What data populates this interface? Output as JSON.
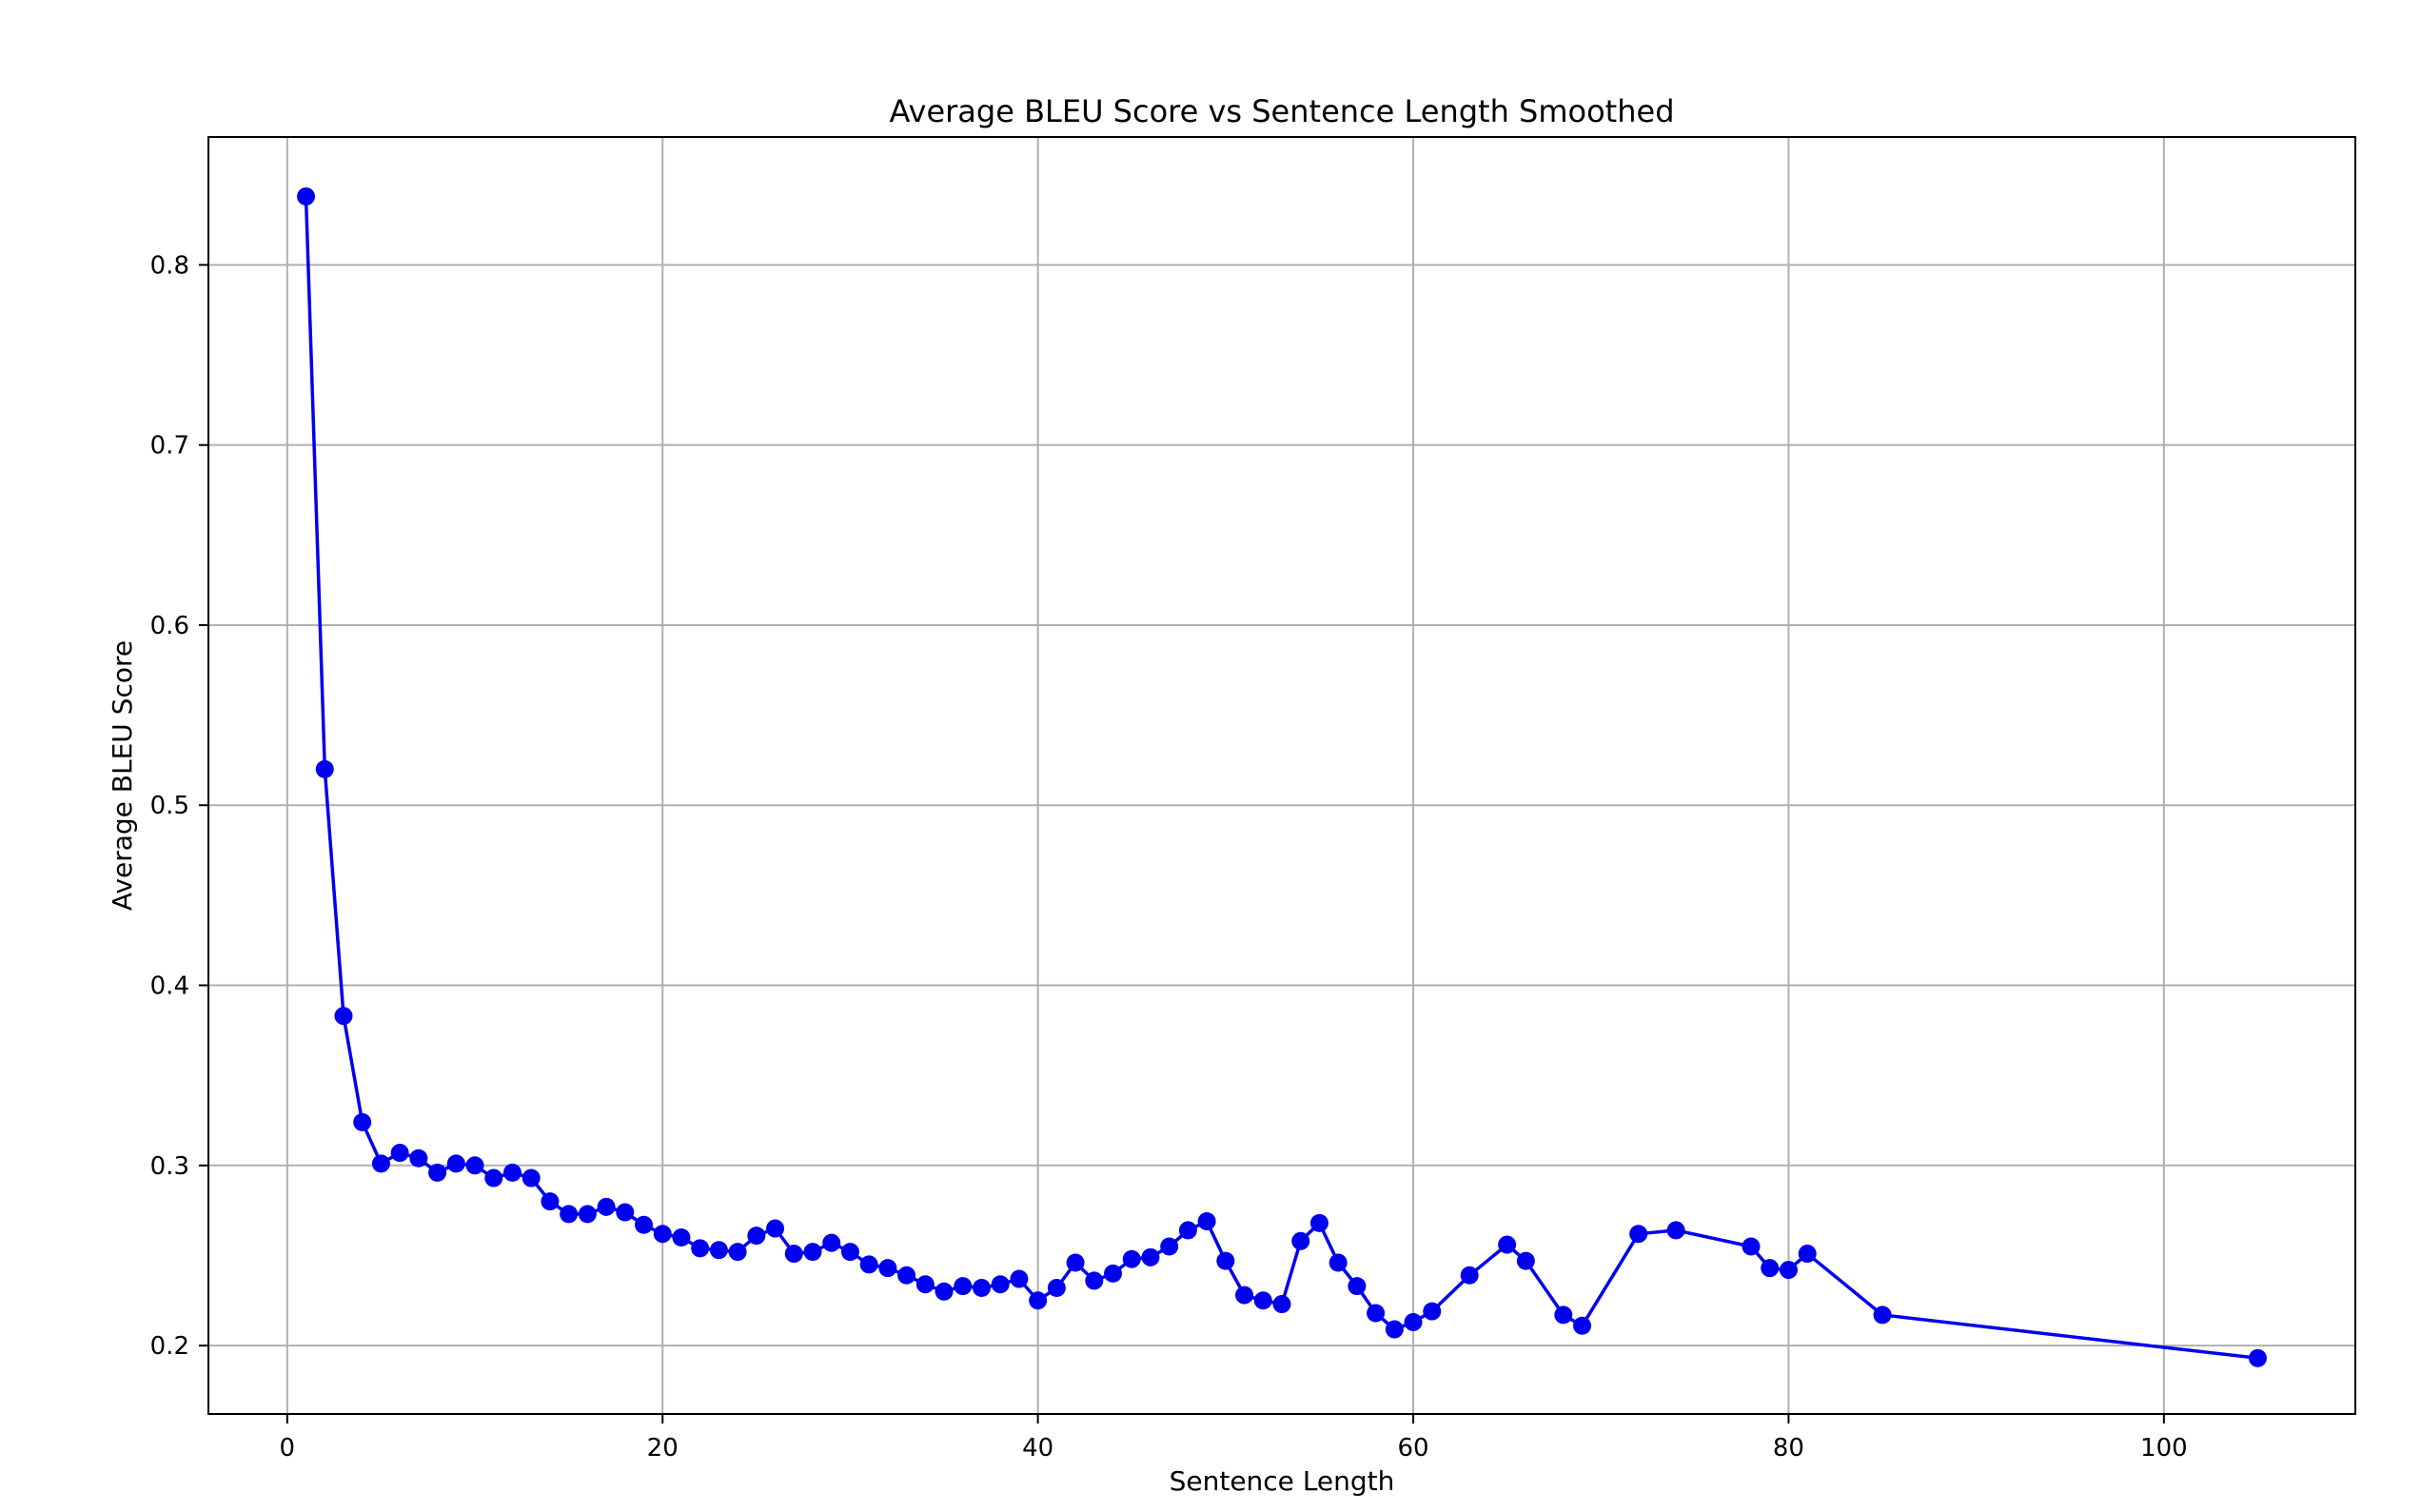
{
  "chart_data": {
    "type": "line",
    "title": "Average BLEU Score vs Sentence Length Smoothed",
    "xlabel": "Sentence Length",
    "ylabel": "Average BLEU Score",
    "xlim": [
      -4.2,
      110.2
    ],
    "ylim": [
      0.162,
      0.871
    ],
    "xticks": [
      0,
      20,
      40,
      60,
      80,
      100
    ],
    "yticks": [
      0.2,
      0.3,
      0.4,
      0.5,
      0.6,
      0.7,
      0.8
    ],
    "xtick_labels": [
      "0",
      "20",
      "40",
      "60",
      "80",
      "100"
    ],
    "ytick_labels": [
      "0.2",
      "0.3",
      "0.4",
      "0.5",
      "0.6",
      "0.7",
      "0.8"
    ],
    "grid": true,
    "legend": "none",
    "line_color": "#0000ee",
    "marker": "circle",
    "series": [
      {
        "x": [
          1,
          2,
          3,
          4,
          5,
          6,
          7,
          8,
          9,
          10,
          11,
          12,
          13,
          14,
          15,
          16,
          17,
          18,
          19,
          20,
          21,
          22,
          23,
          24,
          25,
          26,
          27,
          28,
          29,
          30,
          31,
          32,
          33,
          34,
          35,
          36,
          37,
          38,
          39,
          40,
          41,
          42,
          43,
          44,
          45,
          46,
          47,
          48,
          49,
          50,
          51,
          52,
          53,
          54,
          55,
          56,
          57,
          58,
          59,
          60,
          61,
          63,
          65,
          66,
          68,
          69,
          72,
          74,
          78,
          79,
          80,
          81,
          85,
          105
        ],
        "y": [
          0.838,
          0.52,
          0.383,
          0.324,
          0.301,
          0.307,
          0.304,
          0.296,
          0.301,
          0.3,
          0.293,
          0.296,
          0.293,
          0.28,
          0.273,
          0.273,
          0.277,
          0.274,
          0.267,
          0.262,
          0.26,
          0.254,
          0.253,
          0.252,
          0.261,
          0.265,
          0.251,
          0.252,
          0.257,
          0.252,
          0.245,
          0.243,
          0.239,
          0.234,
          0.23,
          0.233,
          0.232,
          0.234,
          0.237,
          0.225,
          0.232,
          0.246,
          0.236,
          0.24,
          0.248,
          0.249,
          0.255,
          0.264,
          0.269,
          0.247,
          0.228,
          0.225,
          0.223,
          0.258,
          0.268,
          0.246,
          0.233,
          0.218,
          0.209,
          0.213,
          0.219,
          0.239,
          0.256,
          0.247,
          0.217,
          0.211,
          0.262,
          0.264,
          0.255,
          0.243,
          0.242,
          0.251,
          0.217,
          0.193
        ]
      }
    ]
  }
}
